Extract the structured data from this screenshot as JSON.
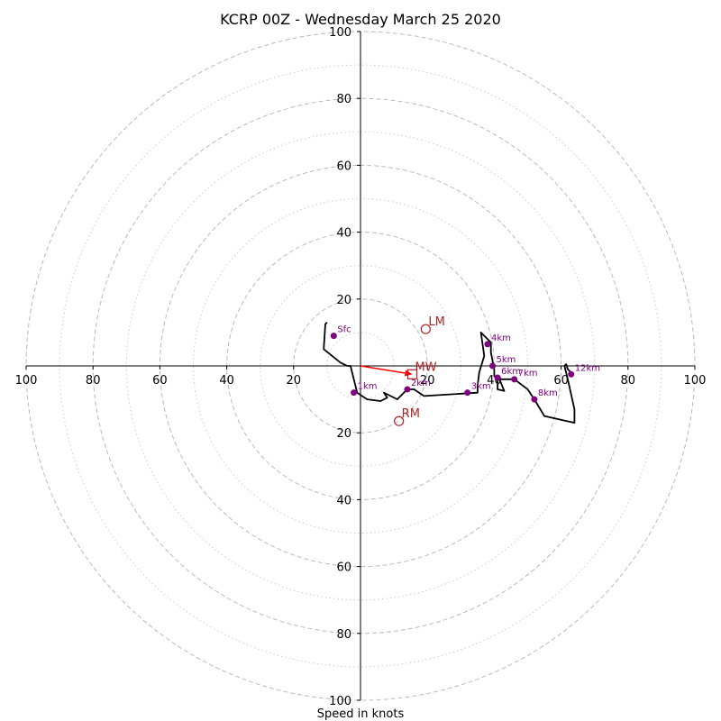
{
  "chart_data": {
    "type": "hodograph",
    "title": "KCRP 00Z - Wednesday March 25 2020",
    "xlabel": "Speed in knots",
    "range": [
      -100,
      100
    ],
    "rings_major": [
      20,
      40,
      60,
      80,
      100
    ],
    "rings_minor": [
      10,
      30,
      50,
      70,
      90
    ],
    "x_tick_labels": [
      "100",
      "80",
      "60",
      "40",
      "20",
      "20",
      "40",
      "60",
      "80",
      "100"
    ],
    "x_tick_values": [
      -100,
      -80,
      -60,
      -40,
      -20,
      20,
      40,
      60,
      80,
      100
    ],
    "y_tick_labels": [
      "100",
      "80",
      "60",
      "40",
      "20",
      "20",
      "40",
      "60",
      "80",
      "100"
    ],
    "y_tick_values": [
      100,
      80,
      60,
      40,
      20,
      -20,
      -40,
      -60,
      -80,
      -100
    ],
    "grid": true,
    "trace": [
      [
        -10,
        13
      ],
      [
        -10.5,
        12.5
      ],
      [
        -11,
        5
      ],
      [
        -6,
        1
      ],
      [
        -4,
        0
      ],
      [
        -3,
        0
      ],
      [
        -1,
        -8
      ],
      [
        2,
        -10
      ],
      [
        6,
        -10.5
      ],
      [
        8,
        -9.5
      ],
      [
        7,
        -8
      ],
      [
        8,
        -8.5
      ],
      [
        11,
        -10
      ],
      [
        12,
        -9
      ],
      [
        14,
        -7
      ],
      [
        16,
        -7
      ],
      [
        19,
        -9
      ],
      [
        35,
        -8
      ],
      [
        35,
        -6
      ],
      [
        35.5,
        -2
      ],
      [
        37,
        3
      ],
      [
        36,
        10
      ],
      [
        38,
        8
      ],
      [
        39,
        7
      ],
      [
        39,
        4
      ],
      [
        40,
        -1
      ],
      [
        40,
        -3
      ],
      [
        41,
        -4
      ],
      [
        41,
        -7
      ],
      [
        43,
        -7.5
      ],
      [
        42,
        -5
      ],
      [
        41,
        -3
      ],
      [
        42,
        -4
      ],
      [
        46,
        -4
      ],
      [
        50,
        -7
      ],
      [
        52,
        -10
      ],
      [
        55,
        -15
      ],
      [
        64,
        -17
      ],
      [
        64,
        -13
      ],
      [
        62,
        -4
      ],
      [
        61,
        0
      ],
      [
        61.5,
        0.5
      ],
      [
        62,
        -1
      ],
      [
        63,
        -2
      ]
    ],
    "height_markers": [
      {
        "label": "Sfc",
        "u": -8,
        "v": 9
      },
      {
        "label": "1km",
        "u": -2,
        "v": -8
      },
      {
        "label": "2km",
        "u": 14,
        "v": -7
      },
      {
        "label": "3km",
        "u": 32,
        "v": -8
      },
      {
        "label": "4km",
        "u": 38,
        "v": 6.5
      },
      {
        "label": "5km",
        "u": 39.5,
        "v": 0
      },
      {
        "label": "6km",
        "u": 41,
        "v": -3.5
      },
      {
        "label": "7km",
        "u": 46,
        "v": -4
      },
      {
        "label": "8km",
        "u": 52,
        "v": -10
      },
      {
        "label": "12km",
        "u": 63,
        "v": -2.5
      }
    ],
    "motion_markers": [
      {
        "label": "LM",
        "u": 19.5,
        "v": 11,
        "shape": "circle"
      },
      {
        "label": "MW",
        "u": 15.5,
        "v": -2.5,
        "shape": "square"
      },
      {
        "label": "RM",
        "u": 11.5,
        "v": -16.5,
        "shape": "circle"
      }
    ],
    "mean_wind_vector": {
      "u": 15.5,
      "v": -2.5
    },
    "colors": {
      "trace": "#000000",
      "height_marker": "#800080",
      "motion_marker": "#b22222",
      "vector": "#ff0000",
      "grid": "#bbbbbb",
      "axis": "#000000"
    }
  }
}
